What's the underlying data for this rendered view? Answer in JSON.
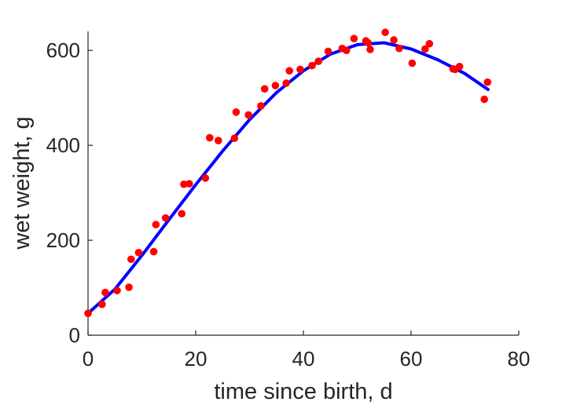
{
  "chart_data": {
    "type": "scatter",
    "title": "",
    "xlabel": "time since birth, d",
    "ylabel": "wet weight, g",
    "xlim": [
      0,
      80
    ],
    "ylim": [
      0,
      640
    ],
    "xticks": [
      0,
      20,
      40,
      60,
      80
    ],
    "yticks": [
      0,
      200,
      400,
      600
    ],
    "grid": false,
    "legend": "none",
    "series": [
      {
        "type": "scatter",
        "color": "#ff0000",
        "x": [
          0.0,
          2.6,
          3.2,
          5.4,
          7.6,
          8.0,
          9.4,
          12.2,
          12.6,
          14.4,
          17.4,
          17.8,
          18.8,
          21.8,
          22.6,
          24.2,
          27.2,
          27.5,
          29.8,
          32.1,
          32.8,
          34.8,
          36.8,
          37.4,
          39.4,
          41.6,
          42.8,
          44.6,
          47.2,
          48.0,
          49.4,
          51.6,
          52.0,
          52.4,
          55.2,
          56.8,
          57.8,
          60.2,
          62.6,
          63.4,
          67.8,
          68.2,
          69.0,
          73.6,
          74.2
        ],
        "y": [
          46,
          65,
          90,
          94,
          101,
          160,
          174,
          176,
          233,
          247,
          256,
          318,
          319,
          331,
          416,
          410,
          415,
          470,
          464,
          483,
          519,
          526,
          531,
          557,
          560,
          568,
          577,
          598,
          604,
          600,
          625,
          620,
          616,
          602,
          638,
          622,
          604,
          573,
          603,
          614,
          561,
          560,
          566,
          497,
          533
        ]
      },
      {
        "type": "line",
        "color": "#0000ff",
        "x": [
          0,
          5,
          10,
          15,
          20,
          25,
          30,
          35,
          40,
          45,
          50,
          55,
          60,
          65,
          70,
          74.5
        ],
        "y": [
          46,
          97,
          168,
          243,
          317,
          388,
          454,
          511,
          557,
          592,
          612,
          616,
          603,
          580,
          551,
          516
        ]
      }
    ]
  }
}
